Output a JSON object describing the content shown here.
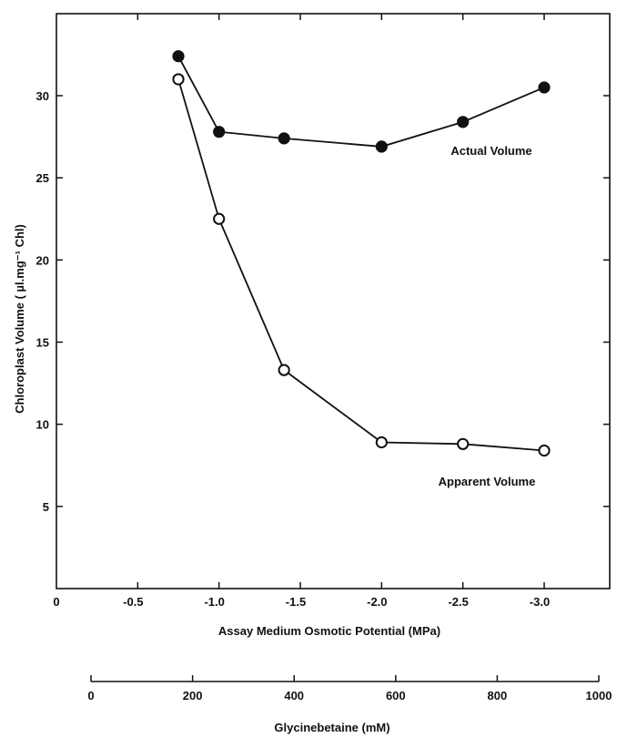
{
  "chart_data": {
    "type": "line",
    "ylabel": "Chloroplast Volume ( µl.mg⁻¹ Chl)",
    "xlabel": "Assay Medium Osmotic Potential (MPa)",
    "xlabel2": "Glycinebetaine (mM)",
    "xlim": [
      0,
      -3.4
    ],
    "ylim": [
      0,
      34.5
    ],
    "grid": false,
    "x_ticks": [
      "0",
      "-0.5",
      "-1.0",
      "-1.5",
      "-2.0",
      "-2.5",
      "-3.0"
    ],
    "x_tick_values": [
      0,
      -0.5,
      -1.0,
      -1.5,
      -2.0,
      -2.5,
      -3.0
    ],
    "y_ticks": [
      "5",
      "10",
      "15",
      "20",
      "25",
      "30"
    ],
    "y_tick_values": [
      5,
      10,
      15,
      20,
      25,
      30
    ],
    "x2_ticks": [
      "0",
      "200",
      "400",
      "600",
      "800",
      "1000"
    ],
    "x2_tick_values": [
      0,
      200,
      400,
      600,
      800,
      1000
    ],
    "series": [
      {
        "name": "Actual Volume",
        "marker": "filled-circle",
        "x": [
          -0.75,
          -1.0,
          -1.4,
          -2.0,
          -2.5,
          -3.0
        ],
        "y": [
          32.4,
          27.8,
          27.4,
          26.9,
          28.4,
          30.5
        ]
      },
      {
        "name": "Apparent Volume",
        "marker": "open-circle",
        "x": [
          -0.75,
          -1.0,
          -1.4,
          -2.0,
          -2.5,
          -3.0
        ],
        "y": [
          31.0,
          22.5,
          13.3,
          8.9,
          8.8,
          8.4
        ]
      }
    ],
    "annotations": [
      "Actual Volume",
      "Apparent Volume"
    ],
    "colors": {
      "line": "#111111",
      "marker_fill": "#111111",
      "open_fill": "#ffffff"
    }
  }
}
